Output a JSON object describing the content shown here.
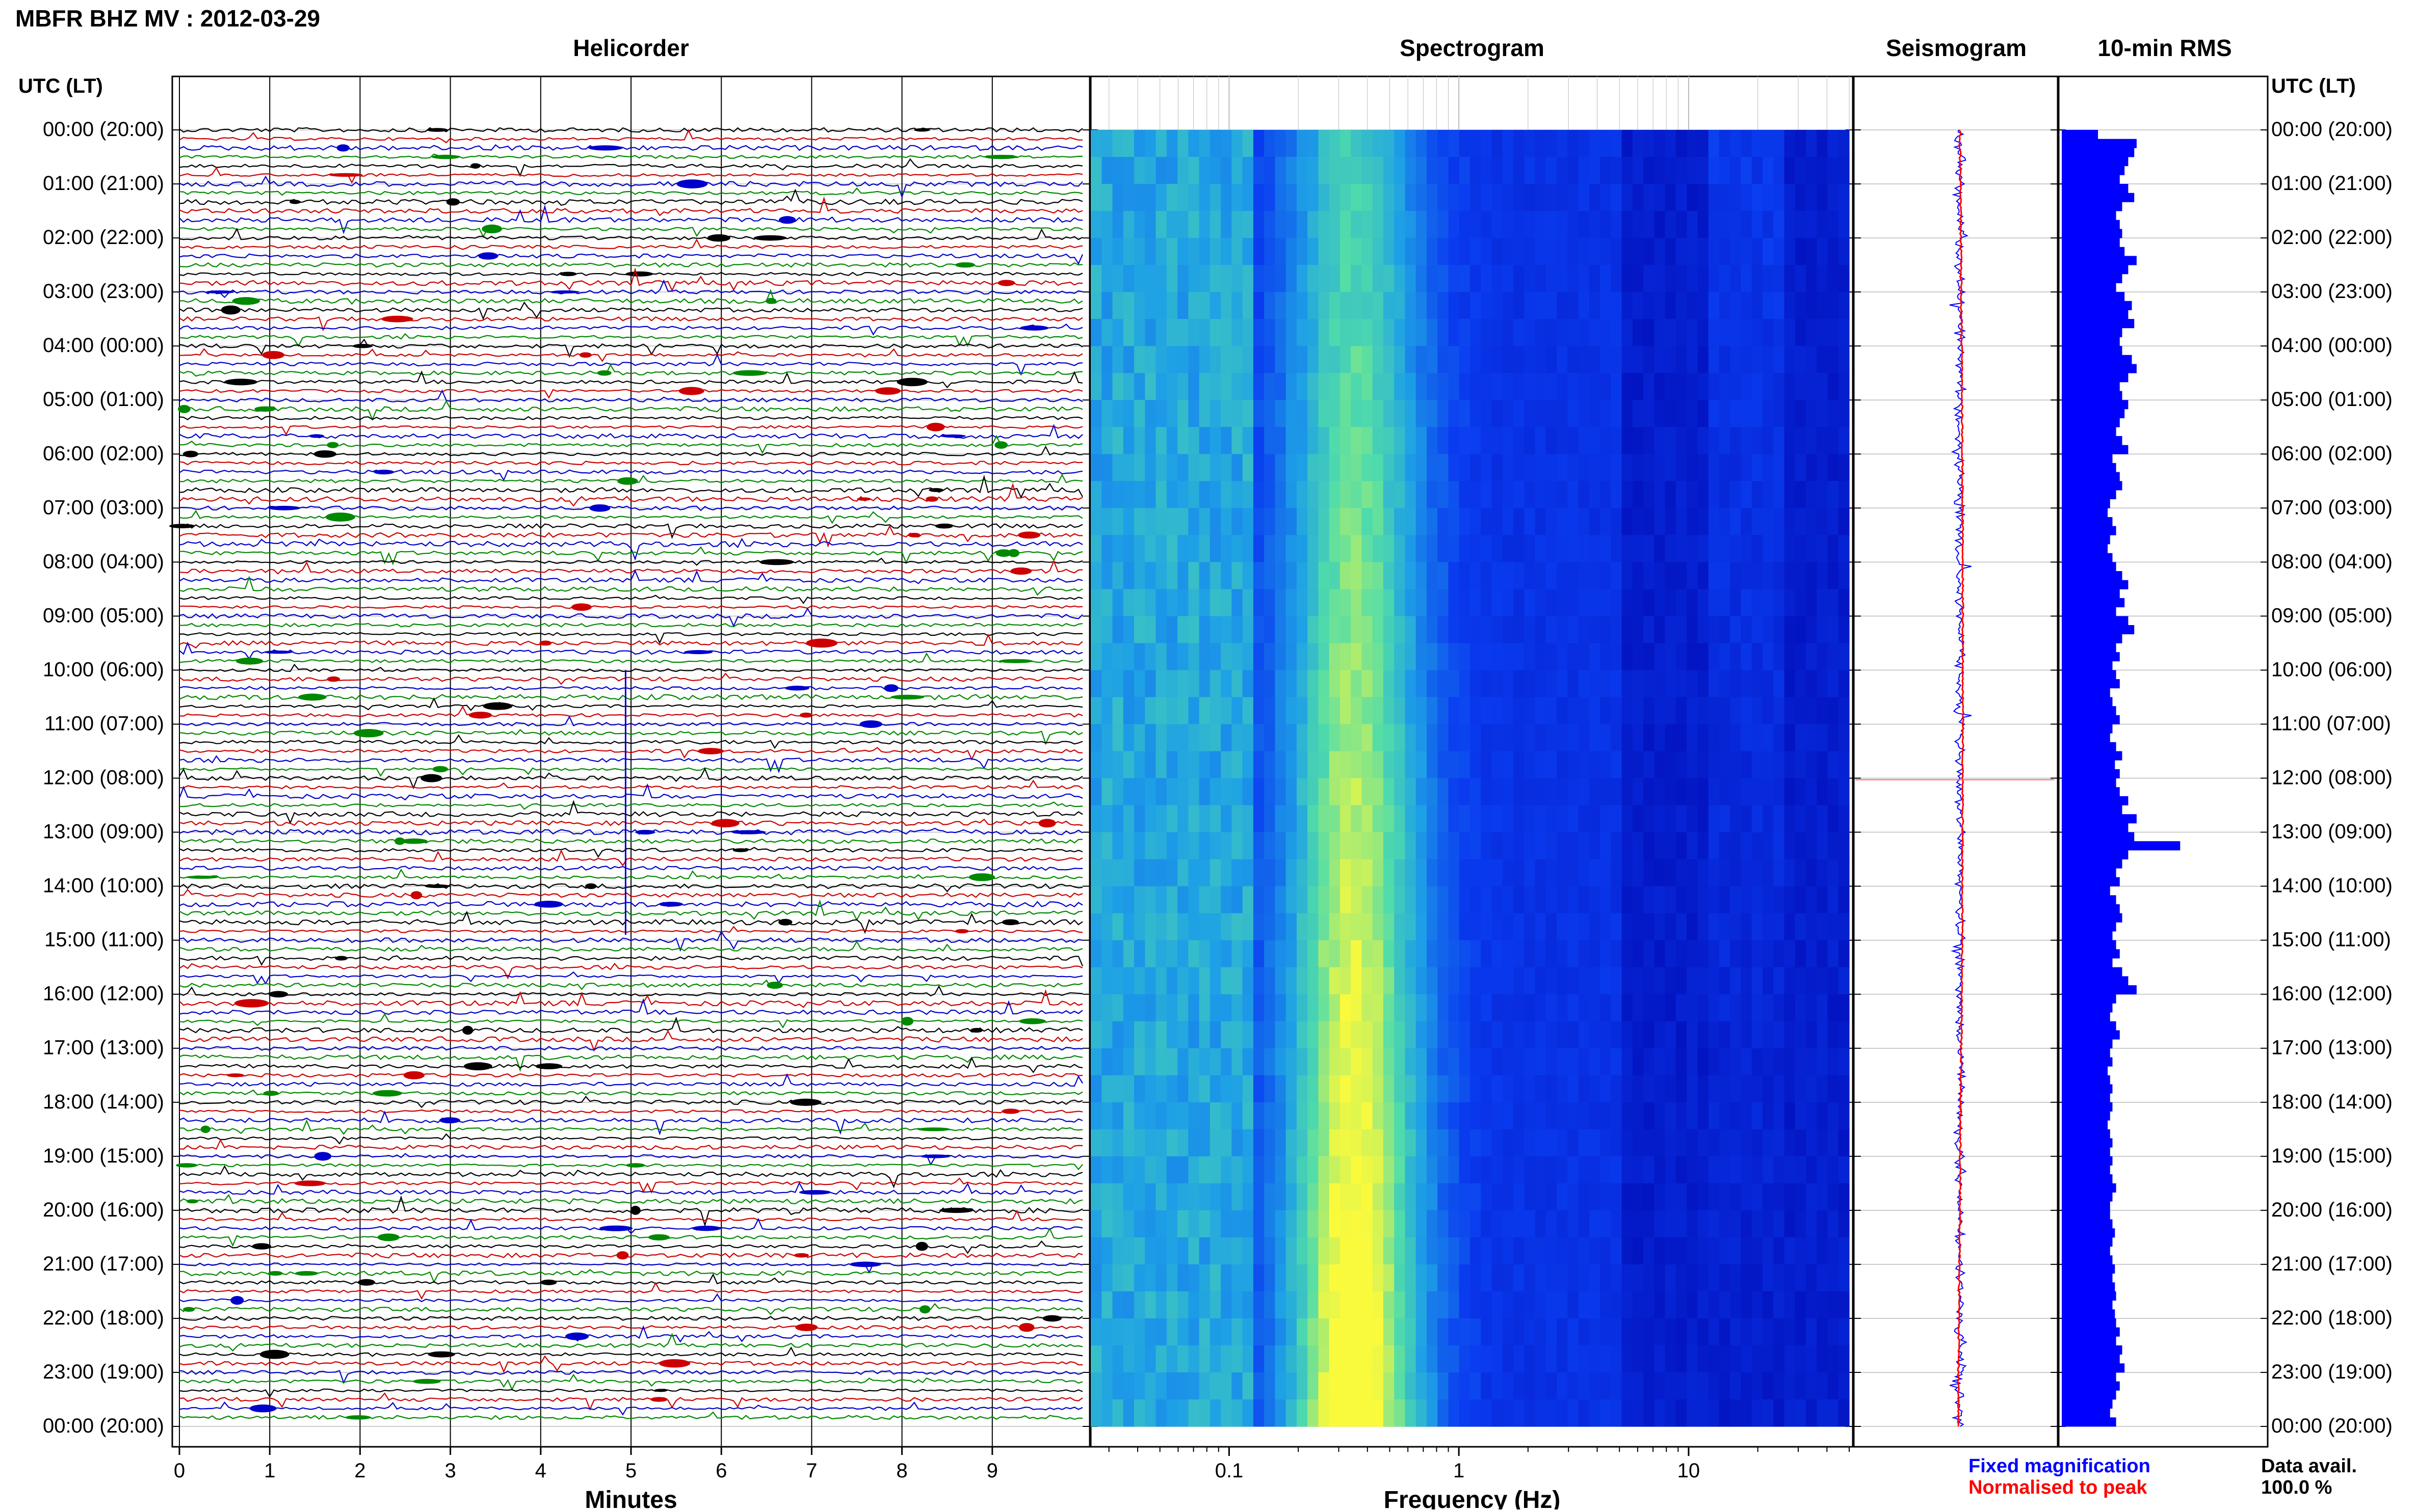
{
  "title": "MBFR BHZ MV : 2012-03-29",
  "panels": {
    "helicorder": "Helicorder",
    "spectrogram": "Spectrogram",
    "seismogram": "Seismogram",
    "rms": "10-min RMS"
  },
  "axis_headers": {
    "left": "UTC (LT)",
    "right": "UTC (LT)"
  },
  "time_labels": [
    "00:00 (20:00)",
    "01:00 (21:00)",
    "02:00 (22:00)",
    "03:00 (23:00)",
    "04:00 (00:00)",
    "05:00 (01:00)",
    "06:00 (02:00)",
    "07:00 (03:00)",
    "08:00 (04:00)",
    "09:00 (05:00)",
    "10:00 (06:00)",
    "11:00 (07:00)",
    "12:00 (08:00)",
    "13:00 (09:00)",
    "14:00 (10:00)",
    "15:00 (11:00)",
    "16:00 (12:00)",
    "17:00 (13:00)",
    "18:00 (14:00)",
    "19:00 (15:00)",
    "20:00 (16:00)",
    "21:00 (17:00)",
    "22:00 (18:00)",
    "23:00 (19:00)",
    "00:00 (20:00)"
  ],
  "x_axes": {
    "helicorder": {
      "label": "Minutes",
      "ticks": [
        "0",
        "1",
        "2",
        "3",
        "4",
        "5",
        "6",
        "7",
        "8",
        "9"
      ]
    },
    "spectrogram": {
      "label": "Frequency (Hz)",
      "ticks": [
        "0.1",
        "1",
        "10"
      ]
    }
  },
  "legend": {
    "fixed": "Fixed magnification",
    "fixed_color": "#0000ff",
    "normalised": "Normalised to peak",
    "normalised_color": "#ff0000"
  },
  "data_avail": {
    "label": "Data avail.",
    "value": "100.0 %"
  },
  "colors": {
    "trace_cycle": [
      "#000000",
      "#cc0000",
      "#0000cc",
      "#008800"
    ],
    "rms_bar": "#0000ff",
    "spectro_low": "#0000cc",
    "spectro_high": "#ffff33"
  },
  "chart_data": {
    "type": "helicorder",
    "station": "MBFR BHZ MV",
    "date": "2012-03-29",
    "rows": 144,
    "minutes_per_row": 10,
    "spectrogram_freq_range_hz": [
      0.025,
      50
    ],
    "spectrogram_scale": "log",
    "rms_10min_relative": [
      0.3,
      0.62,
      0.6,
      0.55,
      0.52,
      0.48,
      0.55,
      0.6,
      0.5,
      0.45,
      0.48,
      0.5,
      0.48,
      0.52,
      0.62,
      0.55,
      0.5,
      0.45,
      0.52,
      0.58,
      0.55,
      0.6,
      0.5,
      0.48,
      0.5,
      0.58,
      0.62,
      0.55,
      0.48,
      0.5,
      0.55,
      0.52,
      0.48,
      0.45,
      0.5,
      0.55,
      0.42,
      0.45,
      0.48,
      0.5,
      0.45,
      0.4,
      0.38,
      0.42,
      0.45,
      0.4,
      0.38,
      0.42,
      0.45,
      0.5,
      0.55,
      0.48,
      0.52,
      0.45,
      0.55,
      0.6,
      0.5,
      0.45,
      0.48,
      0.42,
      0.45,
      0.48,
      0.4,
      0.42,
      0.45,
      0.48,
      0.42,
      0.4,
      0.45,
      0.5,
      0.44,
      0.48,
      0.45,
      0.48,
      0.55,
      0.5,
      0.62,
      0.55,
      0.6,
      0.98,
      0.55,
      0.5,
      0.45,
      0.48,
      0.4,
      0.45,
      0.48,
      0.5,
      0.45,
      0.42,
      0.45,
      0.48,
      0.42,
      0.5,
      0.55,
      0.62,
      0.45,
      0.42,
      0.4,
      0.45,
      0.48,
      0.42,
      0.4,
      0.42,
      0.38,
      0.4,
      0.42,
      0.4,
      0.42,
      0.4,
      0.38,
      0.4,
      0.42,
      0.4,
      0.42,
      0.4,
      0.42,
      0.45,
      0.42,
      0.4,
      0.4,
      0.42,
      0.44,
      0.42,
      0.4,
      0.42,
      0.44,
      0.42,
      0.44,
      0.45,
      0.42,
      0.44,
      0.45,
      0.48,
      0.45,
      0.5,
      0.48,
      0.52,
      0.45,
      0.48,
      0.45,
      0.42,
      0.4,
      0.45
    ]
  }
}
